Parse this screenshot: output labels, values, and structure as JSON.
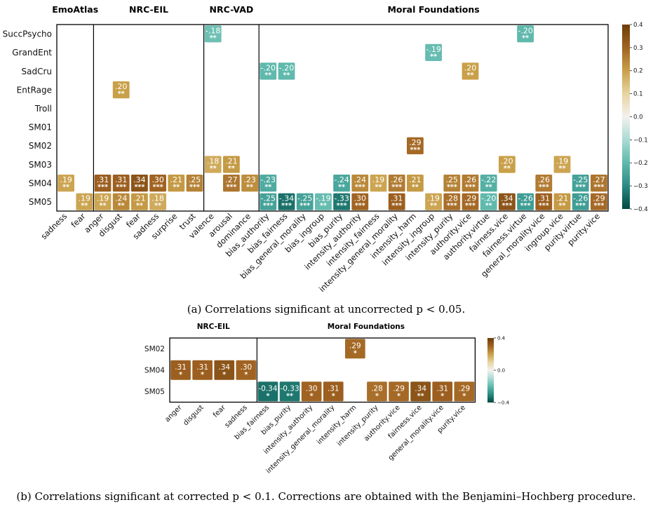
{
  "chart_data": [
    {
      "type": "heatmap",
      "panel": "a",
      "caption": "(a) Correlations significant at uncorrected p < 0.05.",
      "groups": [
        {
          "name": "EmoAtlas",
          "start": 0,
          "end": 2
        },
        {
          "name": "NRC-EIL",
          "start": 2,
          "end": 8
        },
        {
          "name": "NRC-VAD",
          "start": 8,
          "end": 11
        },
        {
          "name": "Moral Foundations",
          "start": 11,
          "end": 30
        }
      ],
      "rows": [
        "SuccPsycho",
        "GrandEnt",
        "SadCru",
        "EntRage",
        "Troll",
        "SM01",
        "SM02",
        "SM03",
        "SM04",
        "SM05"
      ],
      "columns": [
        "sadness",
        "fear",
        "anger",
        "disgust",
        "fear",
        "sadness",
        "surprise",
        "trust",
        "valence",
        "arousal",
        "dominance",
        "bias_authority",
        "bias_fairness",
        "bias_general_morality",
        "bias_ingroup",
        "bias_purity",
        "intensity_authority",
        "intensity_fairness",
        "intensity_general_morality",
        "intensity_harm",
        "intensity_ingroup",
        "intensity_purity",
        "authority.vice",
        "authority.virtue",
        "fairness.vice",
        "fairness.virtue",
        "general_morality.vice",
        "ingroup.vice",
        "purity.virtue",
        "purity.vice"
      ],
      "cells": [
        {
          "row": 0,
          "col": 8,
          "value": -0.18,
          "label": "-.18",
          "stars": "**"
        },
        {
          "row": 0,
          "col": 25,
          "value": -0.2,
          "label": "-.20",
          "stars": "**"
        },
        {
          "row": 1,
          "col": 20,
          "value": -0.19,
          "label": "-.19",
          "stars": "**"
        },
        {
          "row": 2,
          "col": 11,
          "value": -0.2,
          "label": "-.20",
          "stars": "**"
        },
        {
          "row": 2,
          "col": 12,
          "value": -0.2,
          "label": "-.20",
          "stars": "**"
        },
        {
          "row": 2,
          "col": 22,
          "value": 0.2,
          "label": ".20",
          "stars": "**"
        },
        {
          "row": 3,
          "col": 3,
          "value": 0.2,
          "label": ".20",
          "stars": "**"
        },
        {
          "row": 6,
          "col": 19,
          "value": 0.29,
          "label": ".29",
          "stars": "***"
        },
        {
          "row": 7,
          "col": 8,
          "value": 0.18,
          "label": ".18",
          "stars": "**"
        },
        {
          "row": 7,
          "col": 9,
          "value": 0.21,
          "label": ".21",
          "stars": "**"
        },
        {
          "row": 7,
          "col": 24,
          "value": 0.2,
          "label": ".20",
          "stars": "**"
        },
        {
          "row": 7,
          "col": 27,
          "value": 0.19,
          "label": ".19",
          "stars": "**"
        },
        {
          "row": 8,
          "col": 0,
          "value": 0.19,
          "label": ".19",
          "stars": "**"
        },
        {
          "row": 8,
          "col": 2,
          "value": 0.31,
          "label": ".31",
          "stars": "***"
        },
        {
          "row": 8,
          "col": 3,
          "value": 0.31,
          "label": ".31",
          "stars": "***"
        },
        {
          "row": 8,
          "col": 4,
          "value": 0.34,
          "label": ".34",
          "stars": "***"
        },
        {
          "row": 8,
          "col": 5,
          "value": 0.3,
          "label": ".30",
          "stars": "***"
        },
        {
          "row": 8,
          "col": 6,
          "value": 0.21,
          "label": ".21",
          "stars": "**"
        },
        {
          "row": 8,
          "col": 7,
          "value": 0.25,
          "label": ".25",
          "stars": "***"
        },
        {
          "row": 8,
          "col": 9,
          "value": 0.27,
          "label": ".27",
          "stars": "***"
        },
        {
          "row": 8,
          "col": 10,
          "value": 0.23,
          "label": ".23",
          "stars": "**"
        },
        {
          "row": 8,
          "col": 11,
          "value": -0.23,
          "label": "-.23",
          "stars": "**"
        },
        {
          "row": 8,
          "col": 15,
          "value": -0.24,
          "label": "-.24",
          "stars": "**"
        },
        {
          "row": 8,
          "col": 16,
          "value": 0.24,
          "label": ".24",
          "stars": "***"
        },
        {
          "row": 8,
          "col": 17,
          "value": 0.19,
          "label": ".19",
          "stars": "**"
        },
        {
          "row": 8,
          "col": 18,
          "value": 0.26,
          "label": ".26",
          "stars": "***"
        },
        {
          "row": 8,
          "col": 19,
          "value": 0.21,
          "label": ".21",
          "stars": "**"
        },
        {
          "row": 8,
          "col": 21,
          "value": 0.25,
          "label": ".25",
          "stars": "***"
        },
        {
          "row": 8,
          "col": 22,
          "value": 0.26,
          "label": ".26",
          "stars": "***"
        },
        {
          "row": 8,
          "col": 23,
          "value": -0.22,
          "label": "-.22",
          "stars": "**"
        },
        {
          "row": 8,
          "col": 26,
          "value": 0.26,
          "label": ".26",
          "stars": "***"
        },
        {
          "row": 8,
          "col": 28,
          "value": -0.25,
          "label": "-.25",
          "stars": "***"
        },
        {
          "row": 8,
          "col": 29,
          "value": 0.27,
          "label": ".27",
          "stars": "***"
        },
        {
          "row": 9,
          "col": 1,
          "value": 0.19,
          "label": ".19",
          "stars": "**"
        },
        {
          "row": 9,
          "col": 2,
          "value": 0.19,
          "label": ".19",
          "stars": "**"
        },
        {
          "row": 9,
          "col": 3,
          "value": 0.24,
          "label": ".24",
          "stars": "**"
        },
        {
          "row": 9,
          "col": 4,
          "value": 0.21,
          "label": ".21",
          "stars": "**"
        },
        {
          "row": 9,
          "col": 5,
          "value": 0.18,
          "label": ".18",
          "stars": "**"
        },
        {
          "row": 9,
          "col": 11,
          "value": -0.25,
          "label": "-.25",
          "stars": "***"
        },
        {
          "row": 9,
          "col": 12,
          "value": -0.34,
          "label": "-.34",
          "stars": "***"
        },
        {
          "row": 9,
          "col": 13,
          "value": -0.25,
          "label": "-.25",
          "stars": "***"
        },
        {
          "row": 9,
          "col": 14,
          "value": -0.19,
          "label": "-.19",
          "stars": "**"
        },
        {
          "row": 9,
          "col": 15,
          "value": -0.33,
          "label": "-.33",
          "stars": "***"
        },
        {
          "row": 9,
          "col": 16,
          "value": 0.3,
          "label": ".30",
          "stars": "***"
        },
        {
          "row": 9,
          "col": 18,
          "value": 0.31,
          "label": ".31",
          "stars": "***"
        },
        {
          "row": 9,
          "col": 20,
          "value": 0.19,
          "label": ".19",
          "stars": "**"
        },
        {
          "row": 9,
          "col": 21,
          "value": 0.28,
          "label": ".28",
          "stars": "***"
        },
        {
          "row": 9,
          "col": 22,
          "value": 0.29,
          "label": ".29",
          "stars": "***"
        },
        {
          "row": 9,
          "col": 23,
          "value": -0.2,
          "label": "-.20",
          "stars": "**"
        },
        {
          "row": 9,
          "col": 24,
          "value": 0.34,
          "label": ".34",
          "stars": "***"
        },
        {
          "row": 9,
          "col": 25,
          "value": -0.26,
          "label": "-.26",
          "stars": "***"
        },
        {
          "row": 9,
          "col": 26,
          "value": 0.31,
          "label": ".31",
          "stars": "***"
        },
        {
          "row": 9,
          "col": 27,
          "value": 0.21,
          "label": ".21",
          "stars": "**"
        },
        {
          "row": 9,
          "col": 28,
          "value": -0.26,
          "label": "-.26",
          "stars": "***"
        },
        {
          "row": 9,
          "col": 29,
          "value": 0.29,
          "label": ".29",
          "stars": "***"
        }
      ],
      "colorbar": {
        "min": -0.4,
        "max": 0.4,
        "ticks": [
          "0.4",
          "0.3",
          "0.2",
          "0.1",
          "0.0",
          "−0.1",
          "−0.2",
          "−0.3",
          "−0.4"
        ]
      }
    },
    {
      "type": "heatmap",
      "panel": "b",
      "caption": "(b) Correlations significant at corrected p < 0.1. Corrections are obtained with the Benjamini–Hochberg procedure.",
      "groups": [
        {
          "name": "NRC-EIL",
          "start": 0,
          "end": 4
        },
        {
          "name": "Moral Foundations",
          "start": 4,
          "end": 14
        }
      ],
      "rows": [
        "SM02",
        "SM04",
        "SM05"
      ],
      "columns": [
        "anger",
        "disgust",
        "fear",
        "sadness",
        "bias_fairness",
        "bias_purity",
        "intensity_authority",
        "intensity_general_morality",
        "intensity_harm",
        "intensity_purity",
        "authority.vice",
        "fairness.vice",
        "general_morality.vice",
        "purity.vice"
      ],
      "cells": [
        {
          "row": 0,
          "col": 8,
          "value": 0.29,
          "label": ".29",
          "stars": "*"
        },
        {
          "row": 1,
          "col": 0,
          "value": 0.31,
          "label": ".31",
          "stars": "*"
        },
        {
          "row": 1,
          "col": 1,
          "value": 0.31,
          "label": ".31",
          "stars": "*"
        },
        {
          "row": 1,
          "col": 2,
          "value": 0.34,
          "label": ".34",
          "stars": "*"
        },
        {
          "row": 1,
          "col": 3,
          "value": 0.3,
          "label": ".30",
          "stars": "*"
        },
        {
          "row": 2,
          "col": 4,
          "value": -0.34,
          "label": "-0.34",
          "stars": "*"
        },
        {
          "row": 2,
          "col": 5,
          "value": -0.33,
          "label": "-0.33",
          "stars": "**"
        },
        {
          "row": 2,
          "col": 6,
          "value": 0.3,
          "label": ".30",
          "stars": "*"
        },
        {
          "row": 2,
          "col": 7,
          "value": 0.31,
          "label": ".31",
          "stars": "*"
        },
        {
          "row": 2,
          "col": 9,
          "value": 0.28,
          "label": ".28",
          "stars": "*"
        },
        {
          "row": 2,
          "col": 10,
          "value": 0.29,
          "label": ".29",
          "stars": "*"
        },
        {
          "row": 2,
          "col": 11,
          "value": 0.34,
          "label": ".34",
          "stars": "**"
        },
        {
          "row": 2,
          "col": 12,
          "value": 0.31,
          "label": ".31",
          "stars": "*"
        },
        {
          "row": 2,
          "col": 13,
          "value": 0.29,
          "label": ".29",
          "stars": "*"
        }
      ],
      "colorbar": {
        "min": -0.4,
        "max": 0.4,
        "ticks": [
          "0.4",
          "0.0",
          "−0.4"
        ]
      }
    }
  ]
}
